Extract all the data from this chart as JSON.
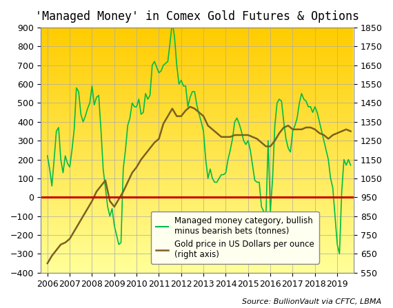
{
  "title": "'Managed Money' in Comex Gold Futures & Options",
  "source": "Source: BullionVault via CFTC, LBMA",
  "left_ylim": [
    -400,
    900
  ],
  "right_ylim": [
    550,
    1850
  ],
  "left_yticks": [
    -400,
    -300,
    -200,
    -100,
    0,
    100,
    200,
    300,
    400,
    500,
    600,
    700,
    800,
    900
  ],
  "right_yticks": [
    550,
    650,
    750,
    850,
    950,
    1050,
    1150,
    1250,
    1350,
    1450,
    1550,
    1650,
    1750,
    1850
  ],
  "xtick_labels": [
    "2006",
    "2007",
    "2008",
    "2009",
    "2010",
    "2011",
    "2012",
    "2013",
    "2014",
    "2015",
    "2016",
    "2017",
    "2018",
    "2019"
  ],
  "legend_labels": [
    "Managed money category, bullish\nminus bearish bets (tonnes)",
    "Gold price in US Dollars per ounce\n(right axis)"
  ],
  "green_color": "#00bb44",
  "gold_color": "#7a6020",
  "red_color": "#cc0000",
  "bg_top_color": "#ffcc00",
  "bg_bottom_color": "#ffff99",
  "title_fontsize": 12,
  "tick_fontsize": 9,
  "legend_fontsize": 8.5,
  "source_fontsize": 8,
  "green_data": {
    "dates": [
      2006.0,
      2006.1,
      2006.2,
      2006.3,
      2006.4,
      2006.5,
      2006.6,
      2006.7,
      2006.8,
      2006.9,
      2007.0,
      2007.1,
      2007.2,
      2007.3,
      2007.4,
      2007.5,
      2007.6,
      2007.7,
      2007.8,
      2007.9,
      2008.0,
      2008.1,
      2008.2,
      2008.3,
      2008.4,
      2008.5,
      2008.6,
      2008.7,
      2008.8,
      2008.9,
      2009.0,
      2009.1,
      2009.2,
      2009.3,
      2009.4,
      2009.5,
      2009.6,
      2009.7,
      2009.8,
      2009.9,
      2010.0,
      2010.1,
      2010.2,
      2010.3,
      2010.4,
      2010.5,
      2010.6,
      2010.7,
      2010.8,
      2010.9,
      2011.0,
      2011.1,
      2011.2,
      2011.3,
      2011.4,
      2011.5,
      2011.6,
      2011.7,
      2011.8,
      2011.9,
      2012.0,
      2012.1,
      2012.2,
      2012.3,
      2012.4,
      2012.5,
      2012.6,
      2012.7,
      2012.8,
      2012.9,
      2013.0,
      2013.1,
      2013.2,
      2013.3,
      2013.4,
      2013.5,
      2013.6,
      2013.7,
      2013.8,
      2013.9,
      2014.0,
      2014.1,
      2014.2,
      2014.3,
      2014.4,
      2014.5,
      2014.6,
      2014.7,
      2014.8,
      2014.9,
      2015.0,
      2015.1,
      2015.2,
      2015.3,
      2015.4,
      2015.5,
      2015.6,
      2015.7,
      2015.8,
      2015.9,
      2016.0,
      2016.1,
      2016.2,
      2016.3,
      2016.4,
      2016.5,
      2016.6,
      2016.7,
      2016.8,
      2016.9,
      2017.0,
      2017.1,
      2017.2,
      2017.3,
      2017.4,
      2017.5,
      2017.6,
      2017.7,
      2017.8,
      2017.9,
      2018.0,
      2018.1,
      2018.2,
      2018.3,
      2018.4,
      2018.5,
      2018.6,
      2018.7,
      2018.8,
      2018.9,
      2019.0,
      2019.1,
      2019.2,
      2019.3,
      2019.4,
      2019.5,
      2019.6
    ],
    "values": [
      220,
      150,
      60,
      200,
      350,
      370,
      200,
      130,
      220,
      180,
      160,
      250,
      360,
      580,
      560,
      440,
      400,
      430,
      470,
      500,
      590,
      490,
      530,
      540,
      360,
      150,
      50,
      -50,
      -100,
      -60,
      -150,
      -200,
      -250,
      -240,
      150,
      250,
      380,
      420,
      500,
      480,
      480,
      520,
      440,
      450,
      550,
      520,
      540,
      700,
      720,
      690,
      660,
      670,
      700,
      710,
      720,
      820,
      930,
      850,
      700,
      600,
      620,
      590,
      590,
      480,
      530,
      560,
      560,
      490,
      440,
      400,
      350,
      200,
      100,
      150,
      100,
      80,
      80,
      100,
      120,
      120,
      130,
      200,
      250,
      310,
      400,
      420,
      390,
      350,
      300,
      280,
      300,
      250,
      170,
      90,
      80,
      80,
      -50,
      -75,
      -100,
      300,
      -75,
      100,
      380,
      500,
      520,
      510,
      400,
      310,
      260,
      240,
      350,
      380,
      420,
      500,
      550,
      520,
      510,
      480,
      480,
      450,
      480,
      450,
      400,
      350,
      300,
      250,
      200,
      100,
      50,
      -100,
      -250,
      -300,
      30,
      200,
      170,
      200,
      170
    ]
  },
  "gold_data": {
    "dates": [
      2006.0,
      2006.2,
      2006.4,
      2006.6,
      2006.8,
      2007.0,
      2007.2,
      2007.4,
      2007.6,
      2007.8,
      2008.0,
      2008.2,
      2008.4,
      2008.6,
      2008.8,
      2009.0,
      2009.2,
      2009.4,
      2009.6,
      2009.8,
      2010.0,
      2010.2,
      2010.4,
      2010.6,
      2010.8,
      2011.0,
      2011.2,
      2011.4,
      2011.6,
      2011.8,
      2012.0,
      2012.2,
      2012.4,
      2012.6,
      2012.8,
      2013.0,
      2013.2,
      2013.4,
      2013.6,
      2013.8,
      2014.0,
      2014.2,
      2014.4,
      2014.6,
      2014.8,
      2015.0,
      2015.2,
      2015.4,
      2015.6,
      2015.8,
      2016.0,
      2016.2,
      2016.4,
      2016.6,
      2016.8,
      2017.0,
      2017.2,
      2017.4,
      2017.6,
      2017.8,
      2018.0,
      2018.2,
      2018.4,
      2018.6,
      2018.8,
      2019.0,
      2019.2,
      2019.4,
      2019.6
    ],
    "values": [
      -350,
      -310,
      -280,
      -250,
      -240,
      -220,
      -180,
      -140,
      -100,
      -60,
      -20,
      30,
      60,
      90,
      -20,
      -50,
      -10,
      30,
      80,
      130,
      160,
      200,
      230,
      260,
      290,
      310,
      390,
      430,
      470,
      430,
      430,
      460,
      480,
      470,
      450,
      430,
      380,
      360,
      340,
      320,
      320,
      320,
      330,
      330,
      330,
      330,
      320,
      310,
      290,
      270,
      270,
      300,
      340,
      370,
      380,
      360,
      360,
      360,
      370,
      370,
      360,
      340,
      330,
      310,
      330,
      340,
      350,
      360,
      350
    ]
  }
}
